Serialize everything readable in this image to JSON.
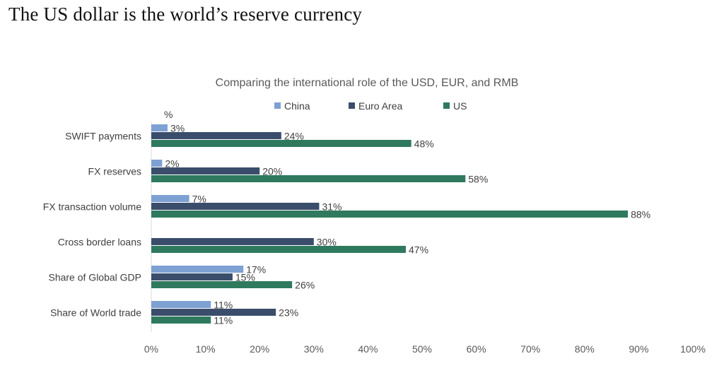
{
  "page_title": "The US dollar is the world’s reserve currency",
  "chart_data": {
    "type": "bar",
    "orientation": "horizontal",
    "title": "Comparing the international role of the USD, EUR, and RMB",
    "unit_label": "%",
    "xlim": [
      0,
      100
    ],
    "xticks": [
      0,
      10,
      20,
      30,
      40,
      50,
      60,
      70,
      80,
      90,
      100
    ],
    "tick_suffix": "%",
    "categories": [
      "SWIFT payments",
      "FX reserves",
      "FX transaction volume",
      "Cross border loans",
      "Share of Global GDP",
      "Share of World trade"
    ],
    "series": [
      {
        "name": "China",
        "color": "#7ea1d3",
        "values": [
          3,
          2,
          7,
          null,
          17,
          11
        ]
      },
      {
        "name": "Euro Area",
        "color": "#3a4d6b",
        "values": [
          24,
          20,
          31,
          30,
          15,
          23
        ]
      },
      {
        "name": "US",
        "color": "#2f7a5e",
        "values": [
          48,
          58,
          88,
          47,
          26,
          11
        ]
      }
    ],
    "legend_position": "top"
  }
}
